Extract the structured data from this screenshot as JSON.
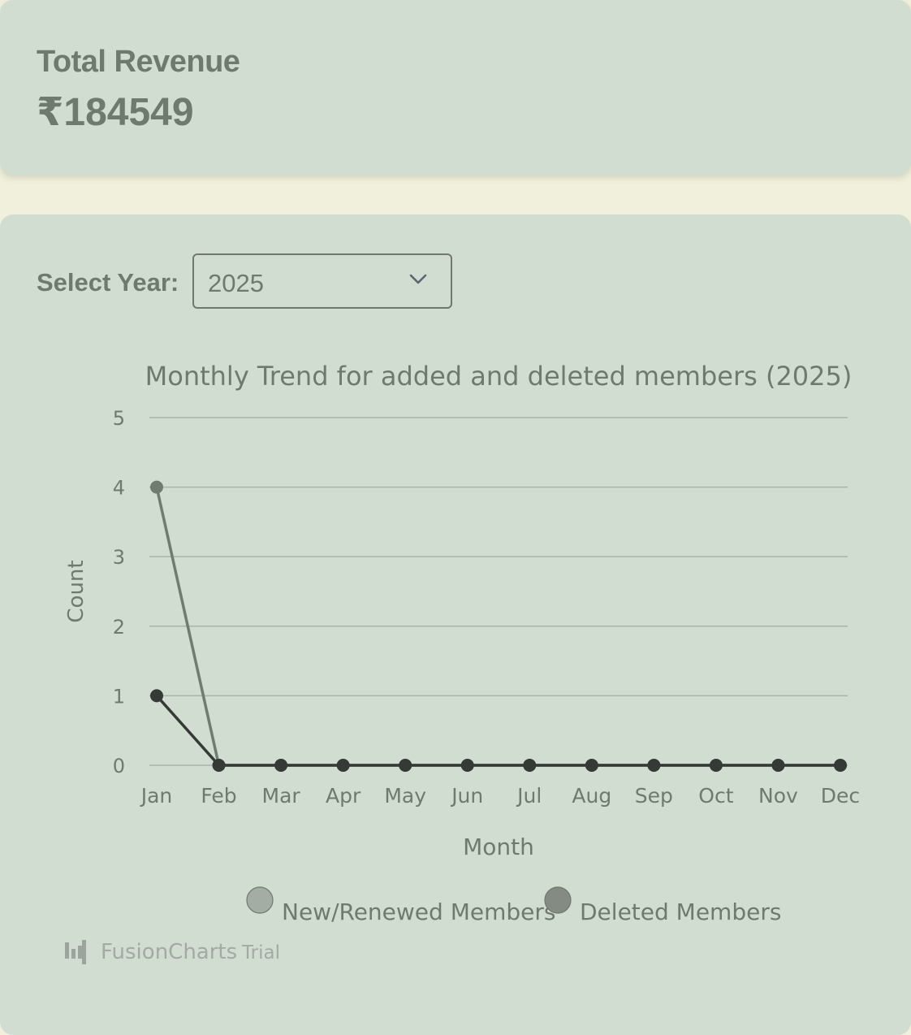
{
  "revenue": {
    "title": "Total Revenue",
    "value": "₹184549"
  },
  "year_filter": {
    "label": "Select Year:",
    "selected": "2025"
  },
  "chart_data": {
    "type": "line",
    "title": "Monthly Trend for added and deleted members (2025)",
    "xlabel": "Month",
    "ylabel": "Count",
    "categories": [
      "Jan",
      "Feb",
      "Mar",
      "Apr",
      "May",
      "Jun",
      "Jul",
      "Aug",
      "Sep",
      "Oct",
      "Nov",
      "Dec"
    ],
    "ylim": [
      0,
      5
    ],
    "yticks": [
      0,
      1,
      2,
      3,
      4,
      5
    ],
    "grid": true,
    "legend_position": "bottom",
    "series": [
      {
        "name": "New/Renewed Members",
        "color": "#707c70",
        "legend_color": "#a3ada3",
        "values": [
          4,
          0,
          0,
          0,
          0,
          0,
          0,
          0,
          0,
          0,
          0,
          0
        ]
      },
      {
        "name": "Deleted Members",
        "color": "#363a36",
        "legend_color": "#838b83",
        "values": [
          1,
          0,
          0,
          0,
          0,
          0,
          0,
          0,
          0,
          0,
          0,
          0
        ]
      }
    ]
  },
  "watermark": {
    "brand": "FusionCharts",
    "suffix": "Trial"
  },
  "colors": {
    "page_bg": "#f1f0dc",
    "card_bg": "#d2ddd2",
    "text": "#6f7a6f"
  }
}
